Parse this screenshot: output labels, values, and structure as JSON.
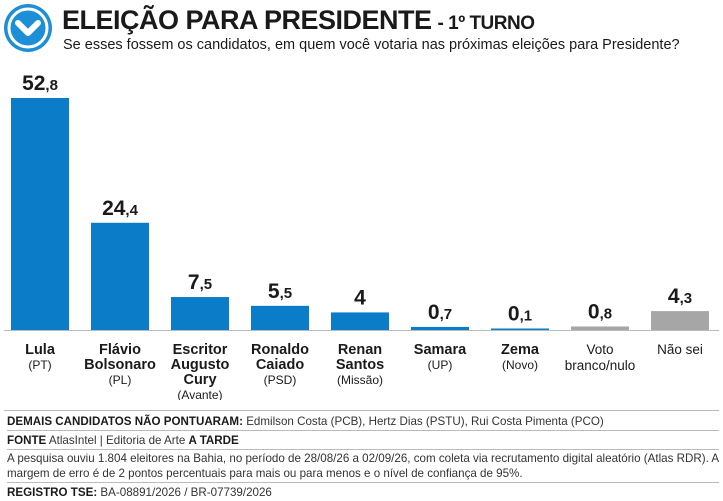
{
  "header": {
    "title": "ELEIÇÃO PARA PRESIDENTE",
    "turno": "- 1º TURNO",
    "subtitle": "Se esses fossem os candidatos, em quem você votaria nas próximas eleições para Presidente?",
    "logo_icon": "chevron-down-icon"
  },
  "colors": {
    "primary": "#0a7cc8",
    "gray": "#a6a6a6",
    "logo": "#1d8fd6"
  },
  "chart_data": {
    "type": "bar",
    "ylim": [
      0,
      52.8
    ],
    "categories": [
      {
        "lines": [
          "Lula"
        ],
        "party": "(PT)",
        "value": 52.8,
        "int": "52",
        "dec": ",8",
        "color": "#0a7cc8",
        "bold": true
      },
      {
        "lines": [
          "Flávio",
          "Bolsonaro"
        ],
        "party": "(PL)",
        "value": 24.4,
        "int": "24",
        "dec": ",4",
        "color": "#0a7cc8",
        "bold": true
      },
      {
        "lines": [
          "Escritor",
          "Augusto",
          "Cury"
        ],
        "party": "(Avante)",
        "value": 7.5,
        "int": "7",
        "dec": ",5",
        "color": "#0a7cc8",
        "bold": true
      },
      {
        "lines": [
          "Ronaldo",
          "Caiado"
        ],
        "party": "(PSD)",
        "value": 5.5,
        "int": "5",
        "dec": ",5",
        "color": "#0a7cc8",
        "bold": true
      },
      {
        "lines": [
          "Renan",
          "Santos"
        ],
        "party": "(Missão)",
        "value": 4,
        "int": "4",
        "dec": "",
        "color": "#0a7cc8",
        "bold": true
      },
      {
        "lines": [
          "Samara"
        ],
        "party": "(UP)",
        "value": 0.7,
        "int": "0",
        "dec": ",7",
        "color": "#0a7cc8",
        "bold": true
      },
      {
        "lines": [
          "Zema"
        ],
        "party": "(Novo)",
        "value": 0.1,
        "int": "0",
        "dec": ",1",
        "color": "#0a7cc8",
        "bold": true
      },
      {
        "lines": [
          "Voto",
          "branco/nulo"
        ],
        "party": "",
        "value": 0.8,
        "int": "0",
        "dec": ",8",
        "color": "#a6a6a6",
        "bold": false
      },
      {
        "lines": [
          "Não sei"
        ],
        "party": "",
        "value": 4.3,
        "int": "4",
        "dec": ",3",
        "color": "#a6a6a6",
        "bold": false
      }
    ]
  },
  "footer": {
    "demais_label": "DEMAIS CANDIDATOS NÃO PONTUARAM:",
    "demais_text": "Edmilson Costa (PCB), Hertz Dias (PSTU), Rui Costa Pimenta (PCO)",
    "fonte_label": "FONTE",
    "fonte_text": "AtlasIntel | Editoria de Arte",
    "fonte_bold": "A TARDE",
    "nota": "A pesquisa ouviu 1.804 eleitores na Bahia, no período de 28/08/26 a 02/09/26, com coleta via recrutamento digital aleatório (Atlas RDR). A margem de erro é de 2 pontos percentuais para mais ou para menos e o nível de confiança de 95%.",
    "registro_label": "REGISTRO TSE:",
    "registro_text": "BA-08891/2026 / BR-07739/2026"
  }
}
